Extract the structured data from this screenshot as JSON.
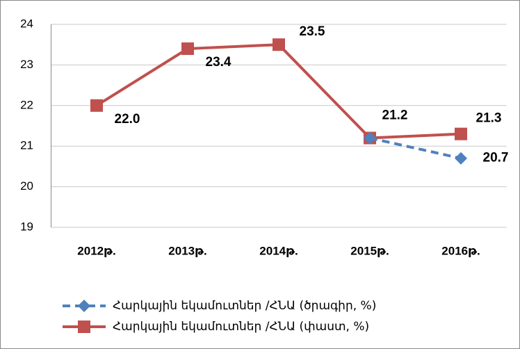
{
  "chart_data": {
    "type": "line",
    "categories": [
      "2012թ.",
      "2013թ.",
      "2014թ.",
      "2015թ.",
      "2016թ."
    ],
    "series": [
      {
        "name": "Հարկային եկամուտներ /ՀՆԱ (ծրագիր, %)",
        "color": "#4f81bd",
        "dashed": true,
        "marker": "diamond",
        "values": [
          null,
          null,
          null,
          21.2,
          20.7
        ],
        "value_labels": [
          null,
          null,
          null,
          null,
          "20.7"
        ]
      },
      {
        "name": "Հարկային եկամուտներ /ՀՆԱ (փաստ, %)",
        "color": "#c0504d",
        "dashed": false,
        "marker": "square",
        "values": [
          22.0,
          23.4,
          23.5,
          21.2,
          21.3
        ],
        "value_labels": [
          "22.0",
          "23.4",
          "23.5",
          "21.2",
          "21.3"
        ]
      }
    ],
    "ylim": [
      19,
      24
    ],
    "yticks": [
      19,
      20,
      21,
      22,
      23,
      24
    ],
    "grid": true,
    "legend": "bottom-left"
  }
}
